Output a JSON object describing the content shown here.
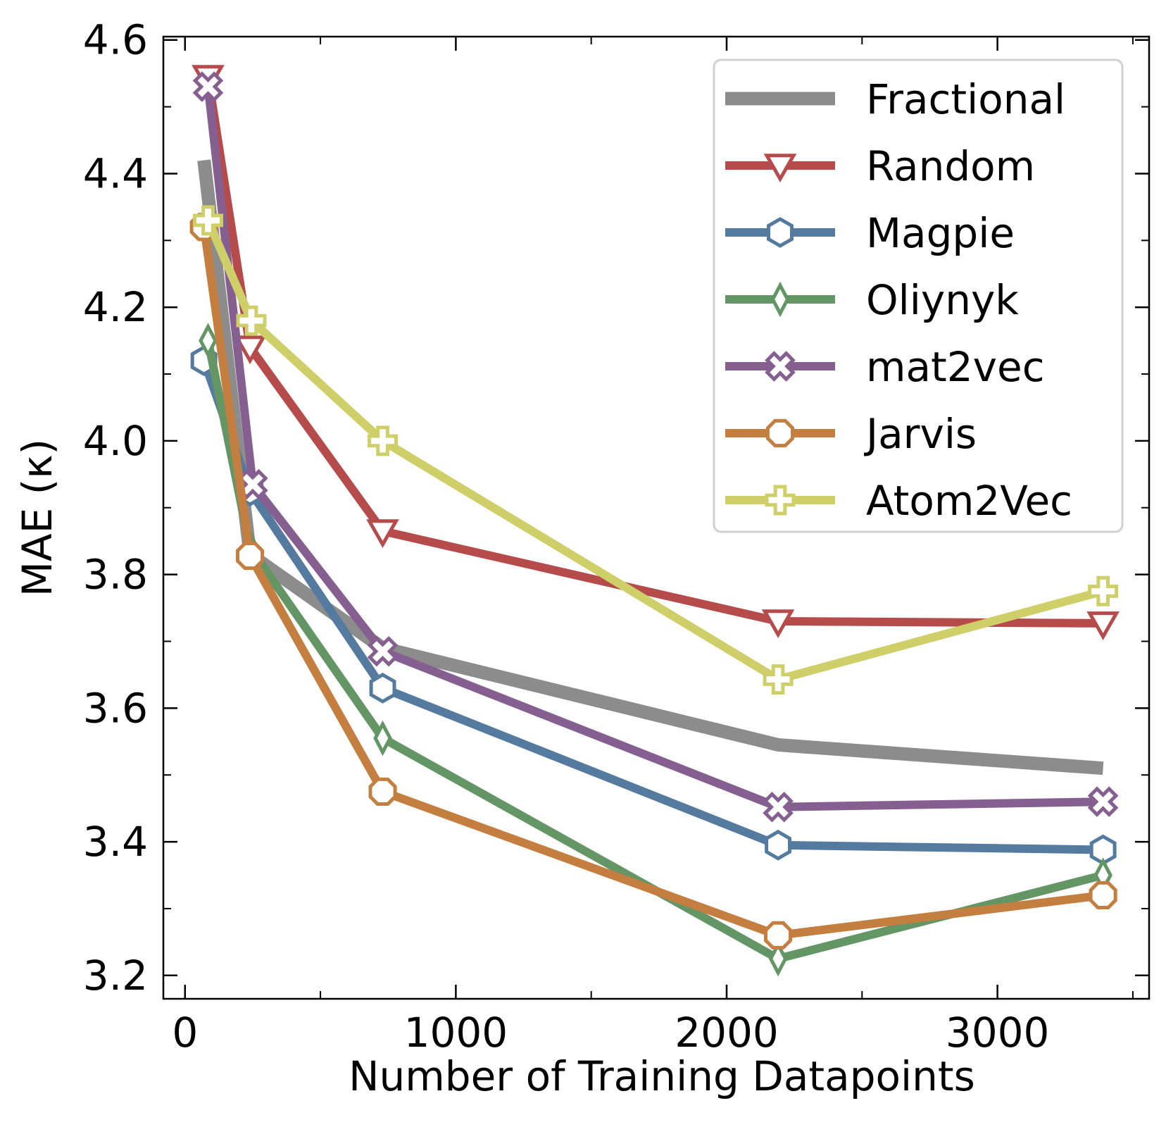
{
  "chart_data": {
    "type": "line",
    "xlabel": "Number of Training Datapoints",
    "ylabel": "MAE (κ)",
    "xlim": [
      -80,
      3560
    ],
    "ylim": [
      3.165,
      4.605
    ],
    "x_ticks": [
      0,
      1000,
      2000,
      3000
    ],
    "y_ticks": [
      3.2,
      3.4,
      3.6,
      3.8,
      4.0,
      4.2,
      4.4,
      4.6
    ],
    "x_tick_labels": [
      "0",
      "1000",
      "2000",
      "3000"
    ],
    "y_tick_labels": [
      "3.2",
      "3.4",
      "3.6",
      "3.8",
      "4.0",
      "4.2",
      "4.4",
      "4.6"
    ],
    "grid": false,
    "legend_position": "top-right",
    "series": [
      {
        "name": "Fractional",
        "color": "#8c8c8c",
        "marker": "none",
        "x": [
          70,
          240,
          730,
          2190,
          3390
        ],
        "y": [
          4.42,
          3.83,
          3.69,
          3.545,
          3.51
        ]
      },
      {
        "name": "Random",
        "color": "#b54b4b",
        "marker": "triangle-down",
        "x": [
          85,
          240,
          730,
          2190,
          3390
        ],
        "y": [
          4.545,
          4.14,
          3.865,
          3.73,
          3.727
        ]
      },
      {
        "name": "Magpie",
        "color": "#557a9f",
        "marker": "hexagon",
        "x": [
          70,
          240,
          730,
          2190,
          3390
        ],
        "y": [
          4.12,
          3.925,
          3.63,
          3.395,
          3.388
        ]
      },
      {
        "name": "Oliynyk",
        "color": "#649665",
        "marker": "thin-diamond",
        "x": [
          85,
          240,
          730,
          2190,
          3390
        ],
        "y": [
          4.15,
          3.84,
          3.555,
          3.225,
          3.35
        ]
      },
      {
        "name": "mat2vec",
        "color": "#865f91",
        "marker": "x-filled",
        "x": [
          85,
          250,
          730,
          2190,
          3390
        ],
        "y": [
          4.53,
          3.935,
          3.685,
          3.452,
          3.46
        ]
      },
      {
        "name": "Jarvis",
        "color": "#c37e40",
        "marker": "octagon",
        "x": [
          70,
          240,
          730,
          2190,
          3390
        ],
        "y": [
          4.32,
          3.828,
          3.475,
          3.26,
          3.32
        ]
      },
      {
        "name": "Atom2Vec",
        "color": "#cfcf6a",
        "marker": "plus-filled",
        "x": [
          85,
          245,
          730,
          2190,
          3390
        ],
        "y": [
          4.33,
          4.18,
          4.0,
          3.643,
          3.775
        ]
      }
    ]
  }
}
